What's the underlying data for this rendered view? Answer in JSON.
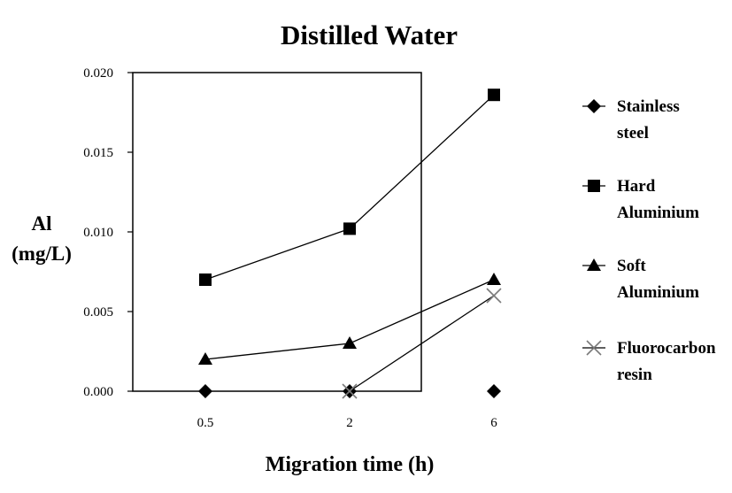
{
  "chart_data": {
    "type": "line",
    "title": "Distilled Water",
    "ylabel_lines": [
      "Al",
      "(mg/L)"
    ],
    "xlabel": "Migration time (h)",
    "categories": [
      "0.5",
      "2",
      "6"
    ],
    "ylim": [
      0,
      0.02
    ],
    "yticks": [
      "0.000",
      "0.005",
      "0.010",
      "0.015",
      "0.020"
    ],
    "ytick_values": [
      0,
      0.005,
      0.01,
      0.015,
      0.02
    ],
    "grid": false,
    "legend_position": "right",
    "series": [
      {
        "name_lines": [
          "Stainless",
          "steel"
        ],
        "marker": "diamond",
        "values": [
          0.0,
          0.0,
          0.0
        ],
        "connected": false
      },
      {
        "name_lines": [
          "Hard",
          "Aluminium"
        ],
        "marker": "square",
        "values": [
          0.007,
          0.0102,
          0.0186
        ],
        "connected": true
      },
      {
        "name_lines": [
          "Soft",
          "Aluminium"
        ],
        "marker": "triangle",
        "values": [
          0.002,
          0.003,
          0.007
        ],
        "connected": true
      },
      {
        "name_lines": [
          "Fluorocarbon",
          "resin"
        ],
        "marker": "x",
        "values": [
          null,
          0.0,
          0.006
        ],
        "connected": true
      }
    ],
    "colors": {
      "line": "#000000",
      "fluoro_marker": "#7a7a7a",
      "frame": "#000000"
    }
  }
}
